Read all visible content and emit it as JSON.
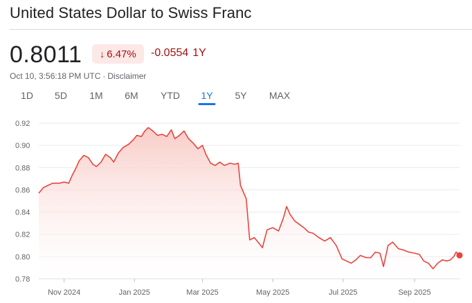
{
  "header": {
    "title": "United States Dollar to Swiss Franc"
  },
  "quote": {
    "price": "0.8011",
    "percent_change": "6.47%",
    "abs_change": "-0.0554",
    "period": "1Y",
    "timestamp": "Oct 10, 3:56:18 PM UTC",
    "separator": "·",
    "disclaimer": "Disclaimer"
  },
  "tabs": [
    {
      "label": "1D",
      "active": false
    },
    {
      "label": "5D",
      "active": false
    },
    {
      "label": "1M",
      "active": false
    },
    {
      "label": "6M",
      "active": false
    },
    {
      "label": "YTD",
      "active": false
    },
    {
      "label": "1Y",
      "active": true
    },
    {
      "label": "5Y",
      "active": false
    },
    {
      "label": "MAX",
      "active": false
    }
  ],
  "colors": {
    "line": "#e8453c",
    "fill_top": "#f8c9c4",
    "negative": "#a50e0e",
    "badge_bg": "#fce8e6",
    "accent": "#1a73e8"
  },
  "chart_data": {
    "type": "area",
    "yticks": [
      "0.92",
      "0.90",
      "0.88",
      "0.86",
      "0.84",
      "0.82",
      "0.80",
      "0.78"
    ],
    "ylim": [
      0.78,
      0.92
    ],
    "xticks": [
      "Nov 2024",
      "Jan 2025",
      "Mar 2025",
      "May 2025",
      "Jul 2025",
      "Sep 2025"
    ],
    "xlim": [
      "2024-10-10",
      "2025-10-10"
    ],
    "grid": true,
    "series": [
      {
        "points": [
          [
            "2024-10-10",
            0.857
          ],
          [
            "2024-10-14",
            0.862
          ],
          [
            "2024-10-18",
            0.864
          ],
          [
            "2024-10-22",
            0.866
          ],
          [
            "2024-10-28",
            0.866
          ],
          [
            "2024-11-01",
            0.867
          ],
          [
            "2024-11-05",
            0.866
          ],
          [
            "2024-11-08",
            0.873
          ],
          [
            "2024-11-11",
            0.879
          ],
          [
            "2024-11-14",
            0.886
          ],
          [
            "2024-11-18",
            0.891
          ],
          [
            "2024-11-22",
            0.889
          ],
          [
            "2024-11-26",
            0.883
          ],
          [
            "2024-11-29",
            0.881
          ],
          [
            "2024-12-03",
            0.885
          ],
          [
            "2024-12-07",
            0.892
          ],
          [
            "2024-12-11",
            0.889
          ],
          [
            "2024-12-14",
            0.885
          ],
          [
            "2024-12-18",
            0.893
          ],
          [
            "2024-12-22",
            0.898
          ],
          [
            "2024-12-27",
            0.901
          ],
          [
            "2024-12-31",
            0.905
          ],
          [
            "2025-01-03",
            0.909
          ],
          [
            "2025-01-07",
            0.908
          ],
          [
            "2025-01-10",
            0.913
          ],
          [
            "2025-01-13",
            0.916
          ],
          [
            "2025-01-17",
            0.913
          ],
          [
            "2025-01-21",
            0.909
          ],
          [
            "2025-01-25",
            0.91
          ],
          [
            "2025-01-29",
            0.908
          ],
          [
            "2025-02-02",
            0.914
          ],
          [
            "2025-02-05",
            0.906
          ],
          [
            "2025-02-09",
            0.909
          ],
          [
            "2025-02-13",
            0.913
          ],
          [
            "2025-02-17",
            0.906
          ],
          [
            "2025-02-21",
            0.902
          ],
          [
            "2025-02-25",
            0.897
          ],
          [
            "2025-03-01",
            0.9
          ],
          [
            "2025-03-04",
            0.892
          ],
          [
            "2025-03-08",
            0.884
          ],
          [
            "2025-03-12",
            0.882
          ],
          [
            "2025-03-16",
            0.885
          ],
          [
            "2025-03-20",
            0.882
          ],
          [
            "2025-03-25",
            0.884
          ],
          [
            "2025-03-29",
            0.883
          ],
          [
            "2025-04-01",
            0.884
          ],
          [
            "2025-04-03",
            0.864
          ],
          [
            "2025-04-08",
            0.852
          ],
          [
            "2025-04-11",
            0.815
          ],
          [
            "2025-04-15",
            0.817
          ],
          [
            "2025-04-19",
            0.812
          ],
          [
            "2025-04-22",
            0.808
          ],
          [
            "2025-04-26",
            0.824
          ],
          [
            "2025-05-01",
            0.826
          ],
          [
            "2025-05-06",
            0.823
          ],
          [
            "2025-05-10",
            0.834
          ],
          [
            "2025-05-13",
            0.845
          ],
          [
            "2025-05-16",
            0.838
          ],
          [
            "2025-05-20",
            0.832
          ],
          [
            "2025-05-24",
            0.829
          ],
          [
            "2025-05-28",
            0.826
          ],
          [
            "2025-06-01",
            0.822
          ],
          [
            "2025-06-05",
            0.821
          ],
          [
            "2025-06-10",
            0.817
          ],
          [
            "2025-06-15",
            0.814
          ],
          [
            "2025-06-20",
            0.817
          ],
          [
            "2025-06-25",
            0.81
          ],
          [
            "2025-06-30",
            0.798
          ],
          [
            "2025-07-04",
            0.796
          ],
          [
            "2025-07-08",
            0.794
          ],
          [
            "2025-07-12",
            0.797
          ],
          [
            "2025-07-16",
            0.801
          ],
          [
            "2025-07-21",
            0.799
          ],
          [
            "2025-07-25",
            0.799
          ],
          [
            "2025-07-29",
            0.804
          ],
          [
            "2025-08-02",
            0.803
          ],
          [
            "2025-08-05",
            0.791
          ],
          [
            "2025-08-09",
            0.81
          ],
          [
            "2025-08-13",
            0.813
          ],
          [
            "2025-08-18",
            0.807
          ],
          [
            "2025-08-22",
            0.806
          ],
          [
            "2025-08-27",
            0.804
          ],
          [
            "2025-09-01",
            0.803
          ],
          [
            "2025-09-05",
            0.802
          ],
          [
            "2025-09-09",
            0.796
          ],
          [
            "2025-09-13",
            0.794
          ],
          [
            "2025-09-17",
            0.789
          ],
          [
            "2025-09-21",
            0.794
          ],
          [
            "2025-09-25",
            0.797
          ],
          [
            "2025-09-29",
            0.796
          ],
          [
            "2025-10-02",
            0.797
          ],
          [
            "2025-10-05",
            0.8
          ],
          [
            "2025-10-07",
            0.804
          ],
          [
            "2025-10-09",
            0.802
          ],
          [
            "2025-10-10",
            0.8011
          ]
        ]
      }
    ]
  }
}
